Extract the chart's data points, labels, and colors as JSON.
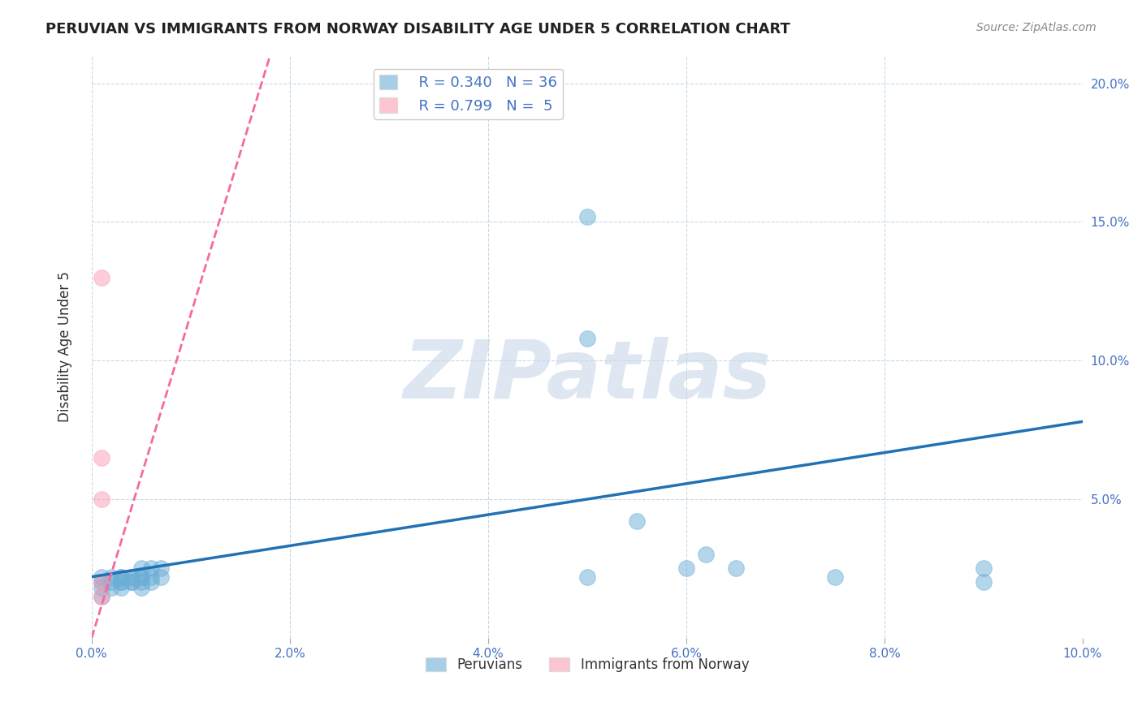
{
  "title": "PERUVIAN VS IMMIGRANTS FROM NORWAY DISABILITY AGE UNDER 5 CORRELATION CHART",
  "source": "Source: ZipAtlas.com",
  "ylabel": "Disability Age Under 5",
  "xlim": [
    0.0,
    0.1
  ],
  "ylim": [
    0.0,
    0.21
  ],
  "xticks": [
    0.0,
    0.02,
    0.04,
    0.06,
    0.08,
    0.1
  ],
  "yticks": [
    0.0,
    0.05,
    0.1,
    0.15,
    0.2
  ],
  "xtick_labels": [
    "0.0%",
    "2.0%",
    "4.0%",
    "6.0%",
    "8.0%",
    "10.0%"
  ],
  "ytick_labels_right": [
    "",
    "5.0%",
    "10.0%",
    "15.0%",
    "20.0%"
  ],
  "blue_scatter_x": [
    0.001,
    0.001,
    0.001,
    0.001,
    0.002,
    0.002,
    0.002,
    0.003,
    0.003,
    0.003,
    0.003,
    0.003,
    0.004,
    0.004,
    0.004,
    0.004,
    0.005,
    0.005,
    0.005,
    0.005,
    0.005,
    0.006,
    0.006,
    0.006,
    0.007,
    0.007,
    0.05,
    0.05,
    0.05,
    0.055,
    0.06,
    0.062,
    0.065,
    0.075,
    0.09,
    0.09
  ],
  "blue_scatter_y": [
    0.022,
    0.02,
    0.018,
    0.015,
    0.022,
    0.02,
    0.018,
    0.022,
    0.02,
    0.022,
    0.02,
    0.018,
    0.022,
    0.02,
    0.022,
    0.02,
    0.025,
    0.022,
    0.02,
    0.022,
    0.018,
    0.025,
    0.022,
    0.02,
    0.025,
    0.022,
    0.108,
    0.152,
    0.022,
    0.042,
    0.025,
    0.03,
    0.025,
    0.022,
    0.025,
    0.02
  ],
  "pink_scatter_x": [
    0.001,
    0.001,
    0.001,
    0.001,
    0.001
  ],
  "pink_scatter_y": [
    0.015,
    0.02,
    0.05,
    0.065,
    0.13
  ],
  "blue_line_x": [
    0.0,
    0.1
  ],
  "blue_line_y": [
    0.022,
    0.078
  ],
  "pink_line_x": [
    0.0,
    0.018
  ],
  "pink_line_y": [
    0.0,
    0.21
  ],
  "blue_R": "0.340",
  "blue_N": "36",
  "pink_R": "0.799",
  "pink_N": "5",
  "blue_color": "#6baed6",
  "pink_color": "#fa9fb5",
  "blue_line_color": "#2171b5",
  "pink_line_color": "#f768a1",
  "bg_color": "#ffffff",
  "watermark": "ZIPatlas",
  "watermark_color": "#c8d8e8"
}
